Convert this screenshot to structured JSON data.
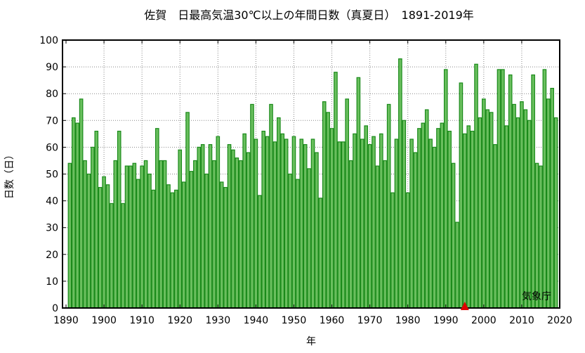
{
  "chart_data": {
    "type": "bar",
    "title": "佐賀　日最高気温30℃以上の年間日数（真夏日）　1891-2019年",
    "xlabel": "年",
    "ylabel": "日数（日）",
    "xlim": [
      1890,
      2020
    ],
    "ylim": [
      0,
      100
    ],
    "xticks": [
      1890,
      1900,
      1910,
      1920,
      1930,
      1940,
      1950,
      1960,
      1970,
      1980,
      1990,
      2000,
      2010,
      2020
    ],
    "yticks": [
      0,
      10,
      20,
      30,
      40,
      50,
      60,
      70,
      80,
      90,
      100
    ],
    "grid": true,
    "bar_color": "#6abf5e",
    "bar_edge_color": "#1a8a1a",
    "marker": {
      "year": 1995,
      "shape": "triangle",
      "color": "#e00000"
    },
    "source": "気象庁",
    "x": [
      1891,
      1892,
      1893,
      1894,
      1895,
      1896,
      1897,
      1898,
      1899,
      1900,
      1901,
      1902,
      1903,
      1904,
      1905,
      1906,
      1907,
      1908,
      1909,
      1910,
      1911,
      1912,
      1913,
      1914,
      1915,
      1916,
      1917,
      1918,
      1919,
      1920,
      1921,
      1922,
      1923,
      1924,
      1925,
      1926,
      1927,
      1928,
      1929,
      1930,
      1931,
      1932,
      1933,
      1934,
      1935,
      1936,
      1937,
      1938,
      1939,
      1940,
      1941,
      1942,
      1943,
      1944,
      1945,
      1946,
      1947,
      1948,
      1949,
      1950,
      1951,
      1952,
      1953,
      1954,
      1955,
      1956,
      1957,
      1958,
      1959,
      1960,
      1961,
      1962,
      1963,
      1964,
      1965,
      1966,
      1967,
      1968,
      1969,
      1970,
      1971,
      1972,
      1973,
      1974,
      1975,
      1976,
      1977,
      1978,
      1979,
      1980,
      1981,
      1982,
      1983,
      1984,
      1985,
      1986,
      1987,
      1988,
      1989,
      1990,
      1991,
      1992,
      1993,
      1994,
      1995,
      1996,
      1997,
      1998,
      1999,
      2000,
      2001,
      2002,
      2003,
      2004,
      2005,
      2006,
      2007,
      2008,
      2009,
      2010,
      2011,
      2012,
      2013,
      2014,
      2015,
      2016,
      2017,
      2018,
      2019
    ],
    "values": [
      54,
      71,
      69,
      78,
      55,
      50,
      60,
      66,
      45,
      49,
      46,
      39,
      55,
      66,
      39,
      53,
      53,
      54,
      48,
      53,
      55,
      50,
      44,
      67,
      55,
      55,
      46,
      43,
      44,
      59,
      47,
      73,
      51,
      55,
      60,
      61,
      50,
      61,
      55,
      64,
      47,
      45,
      61,
      59,
      56,
      55,
      65,
      58,
      76,
      63,
      42,
      66,
      64,
      76,
      62,
      71,
      65,
      63,
      50,
      64,
      48,
      63,
      61,
      52,
      63,
      58,
      41,
      77,
      73,
      67,
      88,
      62,
      62,
      78,
      55,
      65,
      86,
      63,
      68,
      61,
      64,
      53,
      65,
      55,
      76,
      43,
      63,
      93,
      70,
      43,
      63,
      58,
      67,
      69,
      74,
      63,
      60,
      67,
      69,
      89,
      66,
      54,
      32,
      84,
      65,
      68,
      66,
      91,
      71,
      78,
      74,
      73,
      61,
      89,
      89,
      68,
      87,
      76,
      71,
      77,
      74,
      70,
      87,
      54,
      53,
      89,
      78,
      82,
      71
    ]
  }
}
